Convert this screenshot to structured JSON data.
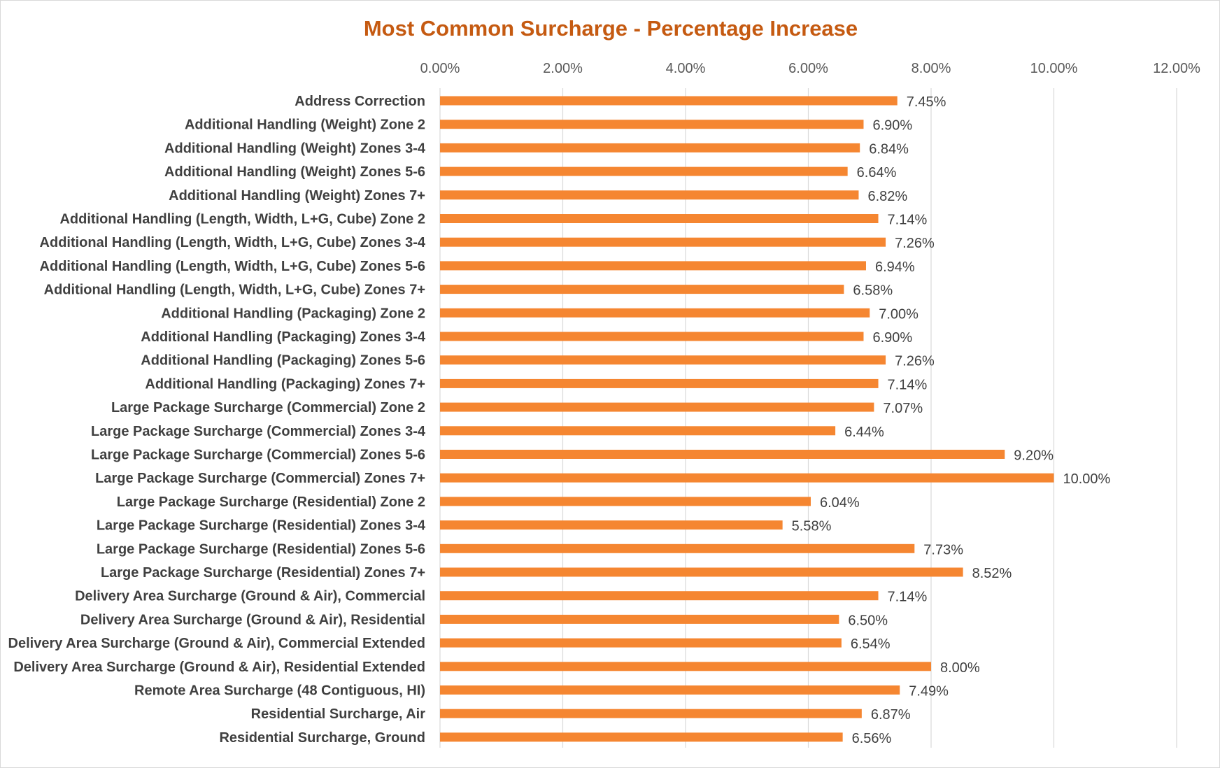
{
  "chart_data": {
    "type": "bar",
    "orientation": "horizontal",
    "title": "Most Common Surcharge - Percentage Increase",
    "xlabel": "",
    "ylabel": "",
    "xlim": [
      0,
      12
    ],
    "x_ticks": [
      0,
      2,
      4,
      6,
      8,
      10,
      12
    ],
    "tick_labels": [
      "0.00%",
      "2.00%",
      "4.00%",
      "6.00%",
      "8.00%",
      "10.00%",
      "12.00%"
    ],
    "grid": true,
    "legend": "none",
    "bar_color": "#f58631",
    "title_color": "#c55a11",
    "categories": [
      "Address Correction",
      "Additional Handling (Weight) Zone 2",
      "Additional Handling (Weight) Zones 3-4",
      "Additional Handling (Weight) Zones 5-6",
      "Additional Handling (Weight) Zones 7+",
      "Additional Handling (Length, Width, L+G, Cube) Zone 2",
      "Additional Handling  (Length, Width, L+G, Cube) Zones 3-4",
      "Additional Handling  (Length, Width, L+G, Cube) Zones 5-6",
      "Additional Handling  (Length, Width, L+G, Cube) Zones 7+",
      "Additional Handling (Packaging) Zone 2",
      "Additional Handling (Packaging) Zones 3-4",
      "Additional Handling (Packaging) Zones 5-6",
      "Additional Handling (Packaging) Zones 7+",
      "Large Package Surcharge (Commercial) Zone 2",
      "Large Package Surcharge (Commercial) Zones 3-4",
      "Large Package Surcharge (Commercial) Zones 5-6",
      "Large Package Surcharge (Commercial) Zones 7+",
      "Large Package Surcharge (Residential) Zone 2",
      "Large Package Surcharge (Residential) Zones 3-4",
      "Large Package Surcharge (Residential) Zones 5-6",
      "Large Package Surcharge (Residential) Zones 7+",
      "Delivery Area Surcharge (Ground & Air), Commercial",
      "Delivery Area Surcharge (Ground & Air), Residential",
      "Delivery Area Surcharge (Ground & Air), Commercial Extended",
      "Delivery Area Surcharge (Ground & Air), Residential Extended",
      "Remote Area Surcharge (48 Contiguous, HI)",
      "Residential Surcharge, Air",
      "Residential Surcharge, Ground"
    ],
    "values": [
      7.45,
      6.9,
      6.84,
      6.64,
      6.82,
      7.14,
      7.26,
      6.94,
      6.58,
      7.0,
      6.9,
      7.26,
      7.14,
      7.07,
      6.44,
      9.2,
      10.0,
      6.04,
      5.58,
      7.73,
      8.52,
      7.14,
      6.5,
      6.54,
      8.0,
      7.49,
      6.87,
      6.56
    ],
    "data_labels": [
      "7.45%",
      "6.90%",
      "6.84%",
      "6.64%",
      "6.82%",
      "7.14%",
      "7.26%",
      "6.94%",
      "6.58%",
      "7.00%",
      "6.90%",
      "7.26%",
      "7.14%",
      "7.07%",
      "6.44%",
      "9.20%",
      "10.00%",
      "6.04%",
      "5.58%",
      "7.73%",
      "8.52%",
      "7.14%",
      "6.50%",
      "6.54%",
      "8.00%",
      "7.49%",
      "6.87%",
      "6.56%"
    ]
  }
}
